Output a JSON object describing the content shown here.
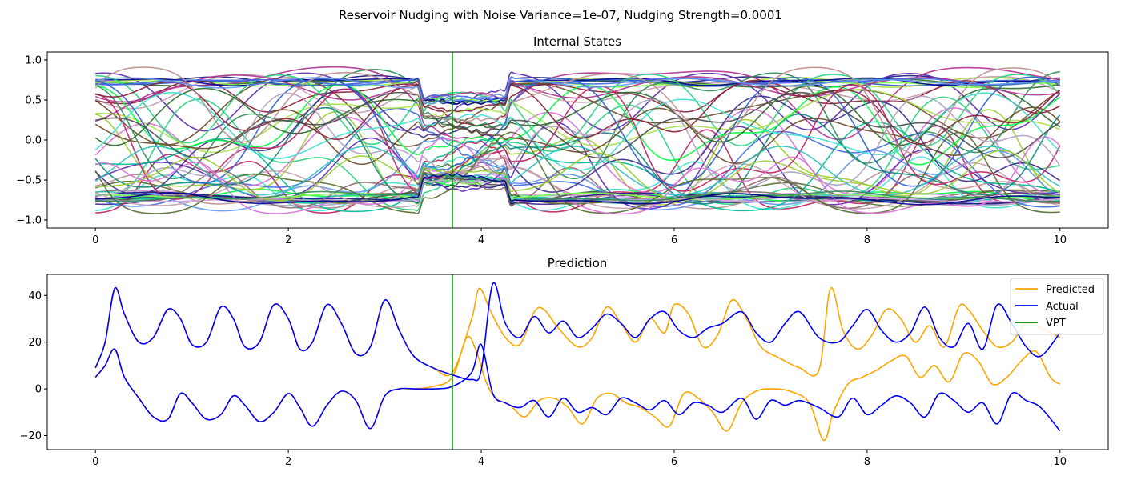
{
  "figure": {
    "suptitle": "Reservoir Nudging with Noise Variance=1e-07, Nudging Strength=0.0001"
  },
  "colors": {
    "predicted": "#ffa500",
    "actual": "#0000ff",
    "vpt": "#008000"
  },
  "chart_data": [
    {
      "type": "line",
      "title": "Internal States",
      "xlabel": "",
      "ylabel": "",
      "xlim": [
        -0.5,
        10.5
      ],
      "ylim": [
        -1.1,
        1.1
      ],
      "xticks": [
        0,
        2,
        4,
        6,
        8,
        10
      ],
      "yticks": [
        -1.0,
        -0.5,
        0.0,
        0.5,
        1.0
      ],
      "xtick_labels": [
        "0",
        "2",
        "4",
        "6",
        "8",
        "10"
      ],
      "ytick_labels": [
        "−1.0",
        "−0.5",
        "0.0",
        "0.5",
        "1.0"
      ],
      "vline_x": 3.7,
      "grid": false,
      "legend": "none",
      "series_count": 60,
      "range_observed": [
        -0.98,
        0.96
      ]
    },
    {
      "type": "line",
      "title": "Prediction",
      "xlabel": "",
      "ylabel": "",
      "xlim": [
        -0.5,
        10.5
      ],
      "ylim": [
        -26,
        49
      ],
      "xticks": [
        0,
        2,
        4,
        6,
        8,
        10
      ],
      "yticks": [
        -20,
        0,
        20,
        40
      ],
      "xtick_labels": [
        "0",
        "2",
        "4",
        "6",
        "8",
        "10"
      ],
      "ytick_labels": [
        "−20",
        "0",
        "20",
        "40"
      ],
      "vline_x": 3.7,
      "grid": false,
      "legend": "top-right",
      "legend_entries": [
        "Predicted",
        "Actual",
        "VPT"
      ],
      "series": [
        {
          "name": "Actual",
          "group": "upper",
          "x": [
            0,
            0.1,
            0.2,
            0.3,
            0.45,
            0.6,
            0.75,
            0.88,
            1.0,
            1.15,
            1.3,
            1.43,
            1.55,
            1.7,
            1.85,
            2.0,
            2.12,
            2.25,
            2.4,
            2.55,
            2.7,
            2.85,
            3.0,
            3.15,
            3.3,
            3.5,
            3.7,
            3.9,
            4.0,
            4.12,
            4.25,
            4.4,
            4.55,
            4.7,
            4.85,
            5.0,
            5.15,
            5.3,
            5.45,
            5.6,
            5.75,
            5.9,
            6.05,
            6.2,
            6.35,
            6.5,
            6.7,
            6.85,
            7.0,
            7.15,
            7.3,
            7.5,
            7.7,
            7.85,
            8.0,
            8.15,
            8.3,
            8.45,
            8.6,
            8.75,
            8.9,
            9.05,
            9.2,
            9.35,
            9.5,
            9.65,
            9.8,
            10.0
          ],
          "y": [
            9,
            20,
            43,
            32,
            20,
            22,
            34,
            30,
            19,
            20,
            35,
            30,
            18,
            20,
            36,
            30,
            17,
            20,
            36,
            28,
            15,
            18,
            38,
            25,
            14,
            9,
            6,
            4,
            8,
            45,
            28,
            22,
            31,
            24,
            29,
            22,
            26,
            32,
            28,
            22,
            30,
            33,
            25,
            22,
            26,
            28,
            33,
            24,
            20,
            28,
            33,
            22,
            20,
            27,
            34,
            25,
            20,
            24,
            35,
            22,
            18,
            28,
            17,
            36,
            28,
            18,
            14,
            24
          ]
        },
        {
          "name": "Actual",
          "group": "lower",
          "x": [
            0,
            0.1,
            0.2,
            0.3,
            0.45,
            0.6,
            0.75,
            0.88,
            1.0,
            1.15,
            1.3,
            1.43,
            1.55,
            1.7,
            1.85,
            2.0,
            2.12,
            2.25,
            2.4,
            2.55,
            2.7,
            2.85,
            3.0,
            3.15,
            3.3,
            3.5,
            3.7,
            3.9,
            4.0,
            4.12,
            4.25,
            4.4,
            4.55,
            4.7,
            4.85,
            5.0,
            5.15,
            5.3,
            5.45,
            5.6,
            5.75,
            5.9,
            6.05,
            6.2,
            6.35,
            6.5,
            6.7,
            6.85,
            7.0,
            7.15,
            7.3,
            7.5,
            7.7,
            7.85,
            8.0,
            8.15,
            8.3,
            8.45,
            8.6,
            8.75,
            8.9,
            9.05,
            9.2,
            9.35,
            9.5,
            9.65,
            9.8,
            10.0
          ],
          "y": [
            5,
            10,
            17,
            5,
            -4,
            -12,
            -13,
            -2,
            -6,
            -13,
            -11,
            -3,
            -7,
            -14,
            -10,
            -2,
            -8,
            -16,
            -7,
            -1,
            -5,
            -17,
            -3,
            0,
            0,
            0,
            1,
            7,
            19,
            -2,
            -6,
            -8,
            -5,
            -12,
            -4,
            -10,
            -8,
            -11,
            -4,
            -6,
            -9,
            -5,
            -11,
            -6,
            -7,
            -10,
            -4,
            -13,
            -5,
            -7,
            -5,
            -8,
            -12,
            -4,
            -11,
            -7,
            -3,
            -6,
            -12,
            -2,
            -5,
            -10,
            -6,
            -15,
            -2,
            -5,
            -8,
            -18
          ]
        },
        {
          "name": "Predicted",
          "group": "upper",
          "x": [
            0,
            0.1,
            0.2,
            0.3,
            0.45,
            0.6,
            0.75,
            0.88,
            1.0,
            1.15,
            1.3,
            1.43,
            1.55,
            1.7,
            1.85,
            2.0,
            2.12,
            2.25,
            2.4,
            2.55,
            2.7,
            2.85,
            3.0,
            3.15,
            3.3,
            3.5,
            3.7,
            3.9,
            3.98,
            4.1,
            4.25,
            4.4,
            4.55,
            4.65,
            4.8,
            5.0,
            5.15,
            5.3,
            5.45,
            5.6,
            5.75,
            5.9,
            6.0,
            6.15,
            6.3,
            6.45,
            6.6,
            6.75,
            6.9,
            7.1,
            7.3,
            7.5,
            7.62,
            7.75,
            7.9,
            8.05,
            8.2,
            8.35,
            8.5,
            8.65,
            8.8,
            8.95,
            9.05,
            9.2,
            9.35,
            9.5,
            9.65,
            9.8,
            10.0
          ],
          "y": [
            9,
            20,
            43,
            32,
            20,
            22,
            34,
            30,
            19,
            20,
            35,
            30,
            18,
            20,
            36,
            30,
            17,
            20,
            36,
            28,
            15,
            18,
            38,
            25,
            14,
            9,
            7,
            30,
            43,
            33,
            22,
            19,
            33,
            34,
            26,
            18,
            22,
            35,
            28,
            20,
            30,
            24,
            36,
            32,
            18,
            23,
            38,
            30,
            18,
            13,
            9,
            8,
            43,
            25,
            17,
            23,
            34,
            30,
            20,
            27,
            18,
            35,
            34,
            25,
            18,
            20,
            28,
            26,
            22
          ]
        },
        {
          "name": "Predicted",
          "group": "lower",
          "x": [
            0,
            0.1,
            0.2,
            0.3,
            0.45,
            0.6,
            0.75,
            0.88,
            1.0,
            1.15,
            1.3,
            1.43,
            1.55,
            1.7,
            1.85,
            2.0,
            2.12,
            2.25,
            2.4,
            2.55,
            2.7,
            2.85,
            3.0,
            3.15,
            3.3,
            3.5,
            3.7,
            3.85,
            3.95,
            4.05,
            4.15,
            4.3,
            4.45,
            4.6,
            4.75,
            4.9,
            5.05,
            5.2,
            5.35,
            5.5,
            5.65,
            5.8,
            5.95,
            6.1,
            6.25,
            6.4,
            6.55,
            6.7,
            6.85,
            7.0,
            7.2,
            7.4,
            7.55,
            7.65,
            7.8,
            7.95,
            8.1,
            8.25,
            8.4,
            8.55,
            8.7,
            8.85,
            9.0,
            9.15,
            9.3,
            9.45,
            9.6,
            9.75,
            9.9,
            10.0
          ],
          "y": [
            5,
            10,
            17,
            5,
            -4,
            -12,
            -13,
            -2,
            -6,
            -13,
            -11,
            -3,
            -7,
            -14,
            -10,
            -2,
            -8,
            -16,
            -7,
            -1,
            -5,
            -17,
            -3,
            0,
            0,
            1,
            5,
            22,
            16,
            3,
            -4,
            -7,
            -12,
            -5,
            -4,
            -8,
            -15,
            -4,
            -2,
            -6,
            -8,
            -12,
            -16,
            -2,
            -4,
            -10,
            -18,
            -6,
            -1,
            0,
            -1,
            -6,
            -22,
            -10,
            2,
            5,
            8,
            12,
            14,
            5,
            10,
            3,
            15,
            12,
            2,
            5,
            12,
            16,
            5,
            2
          ]
        }
      ]
    }
  ]
}
